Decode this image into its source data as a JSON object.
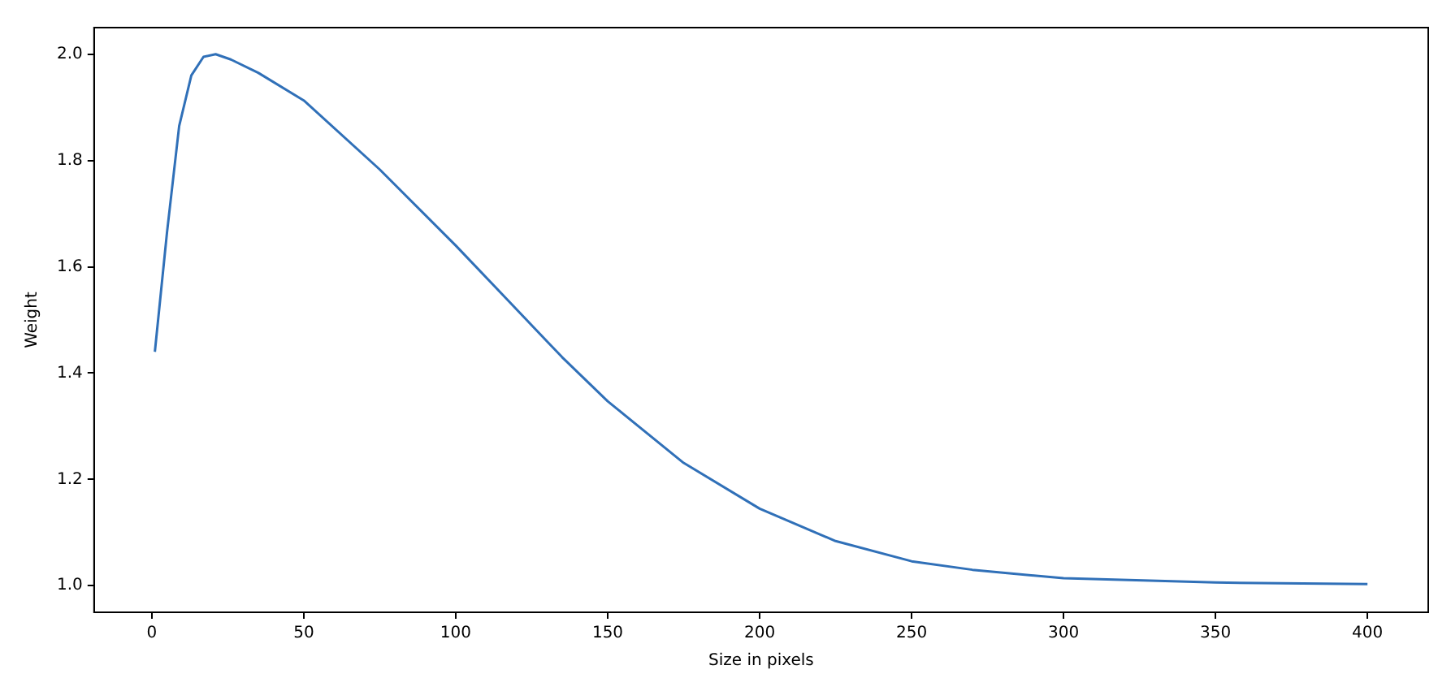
{
  "chart_data": {
    "type": "line",
    "xlabel": "Size in pixels",
    "ylabel": "Weight",
    "x": [
      1,
      5,
      9,
      13,
      17,
      21,
      26,
      35,
      50,
      75,
      100,
      115,
      130,
      135,
      150,
      175,
      200,
      225,
      250,
      270,
      300,
      350,
      400
    ],
    "series": [
      {
        "color": "#3070b8",
        "values": [
          1.44,
          1.665,
          1.865,
          1.96,
          1.995,
          2.0,
          1.99,
          1.965,
          1.913,
          1.783,
          1.64,
          1.55,
          1.46,
          1.43,
          1.347,
          1.231,
          1.145,
          1.084,
          1.046,
          1.03,
          1.014,
          1.006,
          1.003
        ]
      }
    ],
    "xlim": [
      -19,
      420
    ],
    "xticks": [
      0,
      50,
      100,
      150,
      200,
      250,
      300,
      350,
      400
    ],
    "ylim": [
      0.95,
      2.05
    ],
    "yticks": [
      {
        "value": 1,
        "label": "1.0"
      },
      1.2,
      1.4,
      1.6,
      1.8,
      {
        "value": 2,
        "label": "2.0"
      }
    ],
    "grid": false,
    "legend": false,
    "marker": "none",
    "line_style": "solid"
  }
}
